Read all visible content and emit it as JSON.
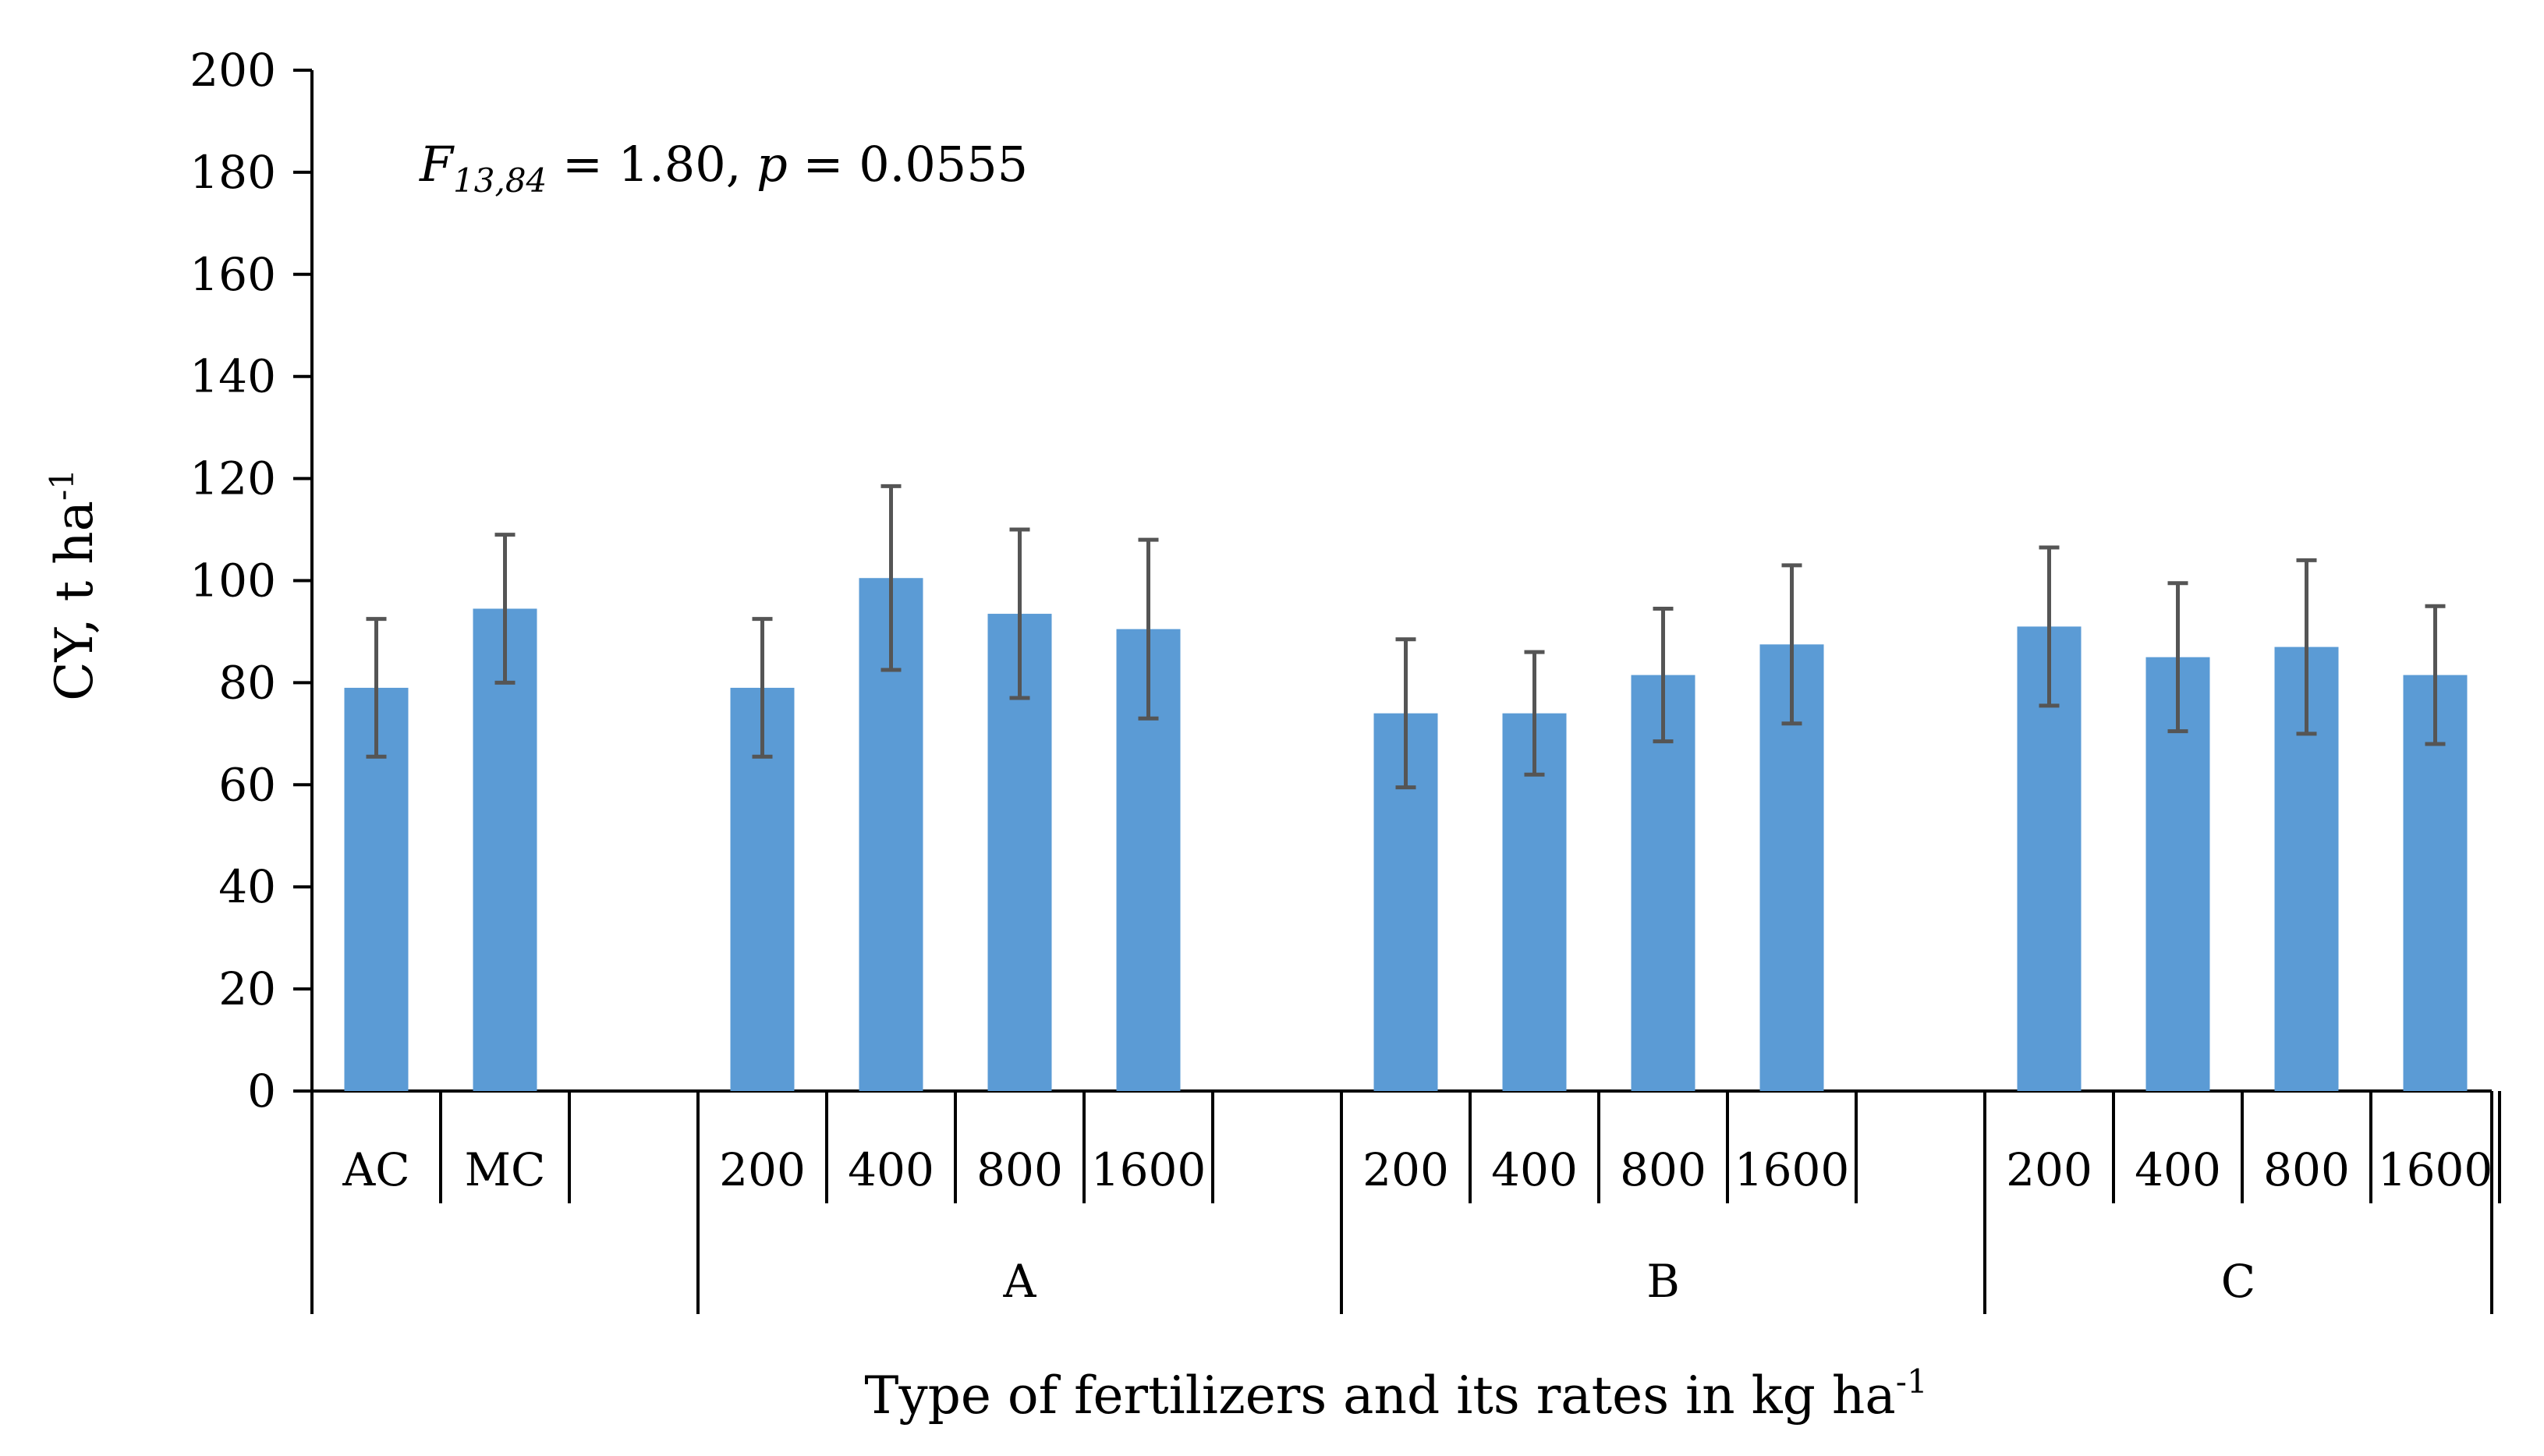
{
  "chart_data": {
    "type": "bar",
    "ylabel": "CY, t ha",
    "ylabel_sup": "-1",
    "xlabel": "Type of fertilizers and its rates in kg ha",
    "xlabel_sup": "-1",
    "ylim": [
      0,
      200
    ],
    "yticks": [
      "0",
      "20",
      "40",
      "60",
      "80",
      "100",
      "120",
      "140",
      "160",
      "180",
      "200"
    ],
    "annotation": {
      "F": "F",
      "F_sub": "13,84",
      "F_value": " = 1.80,",
      "p": "p",
      "p_value": " = 0.0555"
    },
    "groups": [
      {
        "name": "",
        "categories": [
          "AC",
          "MC"
        ],
        "slots": 3
      },
      {
        "name": "A",
        "categories": [
          "200",
          "400",
          "800",
          "1600"
        ],
        "slots": 5
      },
      {
        "name": "B",
        "categories": [
          "200",
          "400",
          "800",
          "1600"
        ],
        "slots": 5
      },
      {
        "name": "C",
        "categories": [
          "200",
          "400",
          "800",
          "1600"
        ],
        "slots": 4
      }
    ],
    "series": [
      {
        "name": "CY",
        "color": "#5b9bd5",
        "values": [
          79,
          94.5,
          79,
          100.5,
          93.5,
          90.5,
          74,
          74,
          81.5,
          87.5,
          91,
          85,
          87,
          81.5
        ],
        "errors": [
          13.5,
          14.5,
          13.5,
          18,
          16.5,
          17.5,
          14.5,
          12,
          13,
          15.5,
          15.5,
          14.5,
          17,
          13.5
        ]
      }
    ],
    "error_bar_color": "#555555"
  }
}
